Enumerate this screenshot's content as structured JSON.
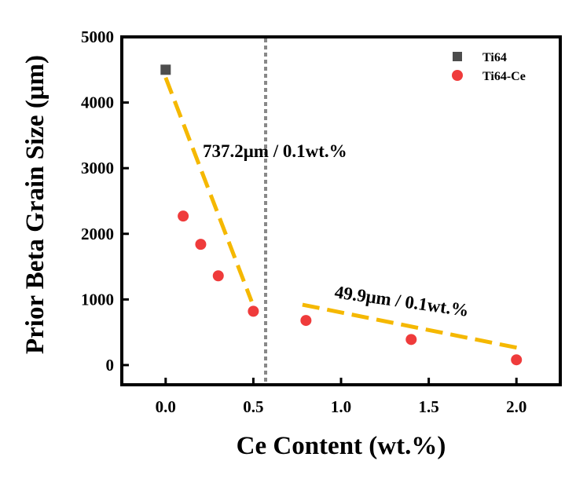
{
  "chart_data": {
    "type": "scatter",
    "xlabel": "Ce Content (wt.%)",
    "ylabel": "Prior Beta Grain Size (μm)",
    "xlim": [
      -0.25,
      2.25
    ],
    "ylim": [
      -300,
      5000
    ],
    "x_ticks": [
      "0.0",
      "0.5",
      "1.0",
      "1.5",
      "2.0"
    ],
    "y_ticks": [
      "0",
      "1000",
      "2000",
      "3000",
      "4000",
      "5000"
    ],
    "grid": false,
    "legend_position": "top-right",
    "series": [
      {
        "name": "Ti64",
        "marker": "square",
        "color": "#4d4d4d",
        "points": [
          {
            "x": 0.0,
            "y": 4500
          }
        ]
      },
      {
        "name": "Ti64-Ce",
        "marker": "circle",
        "color": "#ef3b3b",
        "points": [
          {
            "x": 0.1,
            "y": 2270
          },
          {
            "x": 0.2,
            "y": 1840
          },
          {
            "x": 0.3,
            "y": 1360
          },
          {
            "x": 0.5,
            "y": 820
          },
          {
            "x": 0.8,
            "y": 680
          },
          {
            "x": 1.4,
            "y": 390
          },
          {
            "x": 2.0,
            "y": 80
          }
        ]
      }
    ],
    "trend_lines": [
      {
        "label": "737.2μm / 0.1wt.%",
        "color": "#f5b800",
        "style": "dashed",
        "from": {
          "x": 0.0,
          "y": 4380
        },
        "to": {
          "x": 0.49,
          "y": 970
        }
      },
      {
        "label": "49.9μm / 0.1wt.%",
        "color": "#f5b800",
        "style": "dashed",
        "from": {
          "x": 0.78,
          "y": 920
        },
        "to": {
          "x": 2.03,
          "y": 250
        }
      }
    ],
    "reference_line": {
      "x": 0.57,
      "color": "#888888",
      "style": "dotted"
    }
  }
}
